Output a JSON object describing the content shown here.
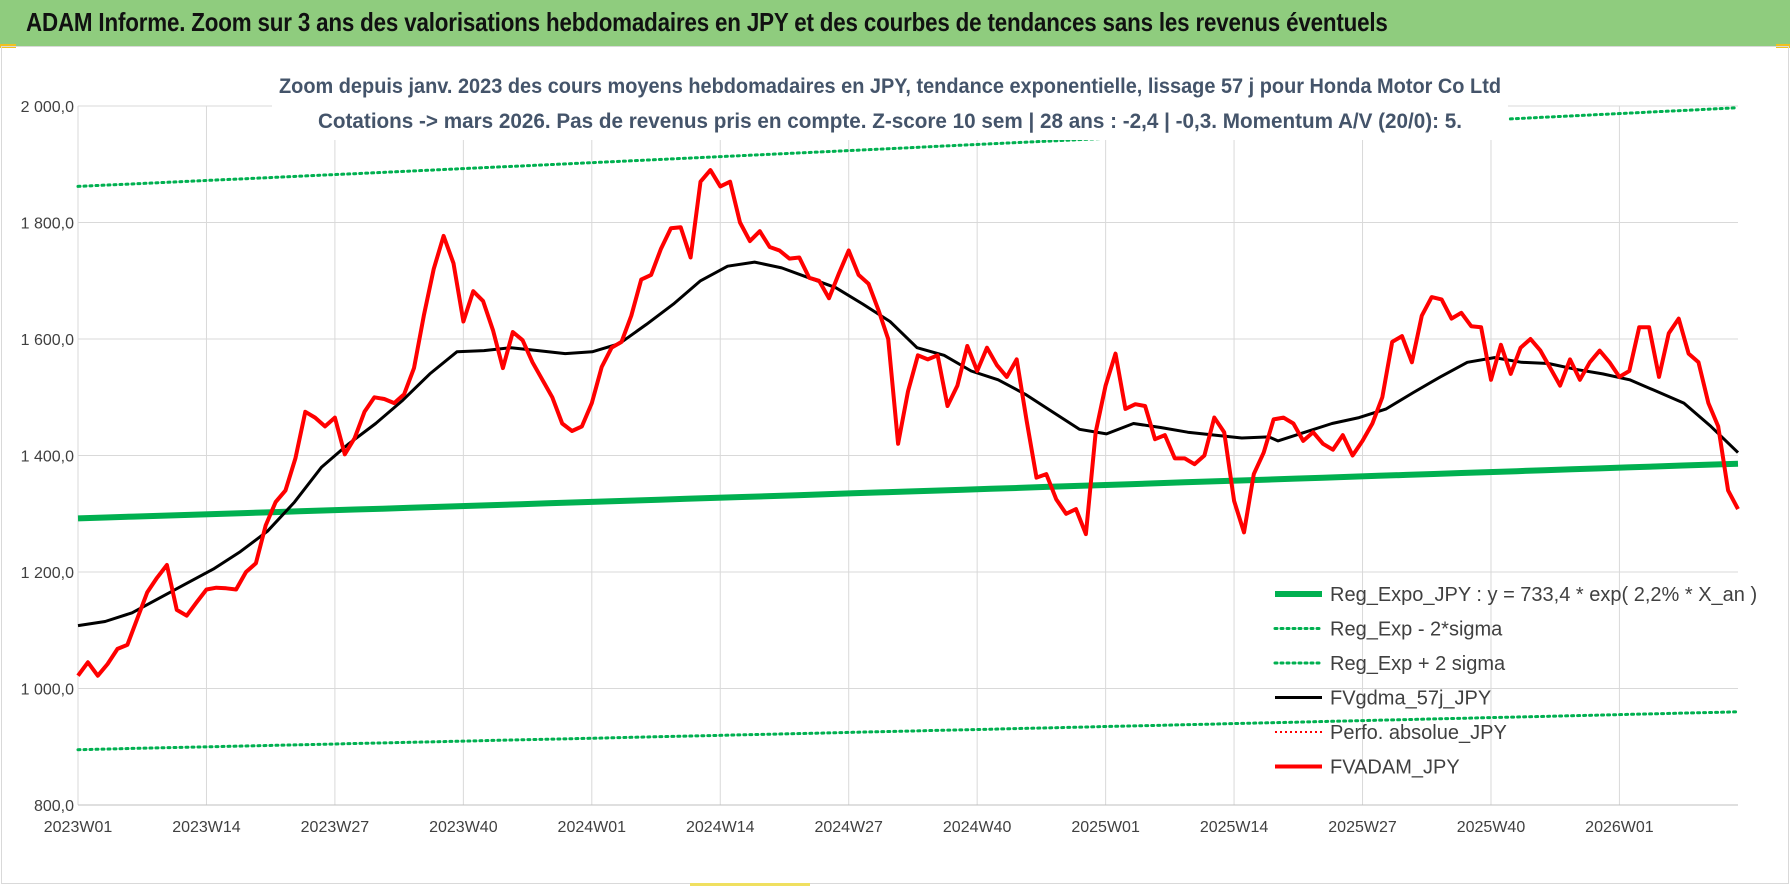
{
  "header": {
    "title": "ADAM Informe. Zoom sur 3 ans des valorisations hebdomadaires en JPY et des courbes de tendances sans les revenus éventuels"
  },
  "chart_data": {
    "type": "line",
    "title_line1": "Zoom depuis janv. 2023 des cours moyens hebdomadaires en JPY, tendance exponentielle, lissage 57 j pour Honda Motor Co Ltd",
    "title_line2": "Cotations -> mars 2026. Pas de revenus pris en compte. Z-score 10 sem | 28 ans : -2,4 | -0,3. Momentum A/V (20/0): 5.",
    "ylim": [
      800,
      2000
    ],
    "yticks": [
      "800,0",
      "1 000,0",
      "1 200,0",
      "1 400,0",
      "1 600,0",
      "1 800,0",
      "2 000,0"
    ],
    "yticks_values": [
      800,
      1000,
      1200,
      1400,
      1600,
      1800,
      2000
    ],
    "x_tick_labels": [
      "2023W01",
      "2023W14",
      "2023W27",
      "2023W40",
      "2024W01",
      "2024W14",
      "2024W27",
      "2024W40",
      "2025W01",
      "2025W14",
      "2025W27",
      "2025W40",
      "2026W01"
    ],
    "x_tick_weeks": [
      0,
      13,
      26,
      39,
      52,
      65,
      78,
      91,
      104,
      117,
      130,
      143,
      156
    ],
    "x_range_weeks": [
      0,
      168
    ],
    "grid": true,
    "legend_position": "bottom-right",
    "colors": {
      "reg_expo": "#00b050",
      "sigma": "#00b050",
      "gdma": "#000000",
      "perf": "#ff0000",
      "fvadam": "#ff0000"
    },
    "legend": [
      {
        "key": "reg_expo",
        "label": "Reg_Expo_JPY : y = 733,4 * exp( 2,2% *  X_an )",
        "style": "thick"
      },
      {
        "key": "sigma_low",
        "label": "Reg_Exp - 2*sigma",
        "style": "dotted-green"
      },
      {
        "key": "sigma_high",
        "label": "Reg_Exp + 2 sigma",
        "style": "dotted-green"
      },
      {
        "key": "gdma",
        "label": "FVgdma_57j_JPY",
        "style": "black"
      },
      {
        "key": "perf",
        "label": "Perfo. absolue_JPY",
        "style": "dotted-red"
      },
      {
        "key": "fvadam",
        "label": "FVADAM_JPY",
        "style": "red"
      }
    ],
    "series": {
      "reg_expo": {
        "start": 1292,
        "end": 1386
      },
      "sigma_low": {
        "start": 895,
        "end": 960
      },
      "sigma_high": {
        "start": 1862,
        "end": 1997
      },
      "gdma": [
        [
          0,
          1108
        ],
        [
          3,
          1115
        ],
        [
          6,
          1130
        ],
        [
          9,
          1155
        ],
        [
          12,
          1180
        ],
        [
          15,
          1205
        ],
        [
          18,
          1235
        ],
        [
          21,
          1270
        ],
        [
          24,
          1320
        ],
        [
          27,
          1380
        ],
        [
          30,
          1420
        ],
        [
          33,
          1455
        ],
        [
          36,
          1495
        ],
        [
          39,
          1540
        ],
        [
          42,
          1578
        ],
        [
          45,
          1580
        ],
        [
          48,
          1585
        ],
        [
          51,
          1580
        ],
        [
          54,
          1575
        ],
        [
          57,
          1578
        ],
        [
          60,
          1592
        ],
        [
          63,
          1625
        ],
        [
          66,
          1660
        ],
        [
          69,
          1700
        ],
        [
          72,
          1725
        ],
        [
          75,
          1732
        ],
        [
          78,
          1722
        ],
        [
          81,
          1705
        ],
        [
          84,
          1688
        ],
        [
          87,
          1660
        ],
        [
          90,
          1630
        ],
        [
          93,
          1585
        ],
        [
          96,
          1572
        ],
        [
          99,
          1545
        ],
        [
          102,
          1530
        ],
        [
          105,
          1505
        ],
        [
          108,
          1475
        ],
        [
          111,
          1445
        ],
        [
          114,
          1437
        ],
        [
          117,
          1455
        ],
        [
          120,
          1448
        ],
        [
          123,
          1440
        ],
        [
          126,
          1435
        ],
        [
          129,
          1430
        ],
        [
          132,
          1432
        ],
        [
          133,
          1425
        ],
        [
          136,
          1440
        ],
        [
          139,
          1455
        ],
        [
          142,
          1465
        ],
        [
          145,
          1480
        ],
        [
          148,
          1508
        ],
        [
          151,
          1535
        ],
        [
          154,
          1560
        ],
        [
          157,
          1568
        ],
        [
          160,
          1560
        ],
        [
          163,
          1558
        ],
        [
          166,
          1548
        ],
        [
          169,
          1540
        ],
        [
          172,
          1530
        ],
        [
          175,
          1510
        ],
        [
          178,
          1490
        ],
        [
          181,
          1450
        ],
        [
          184,
          1405
        ]
      ],
      "fvadam": [
        [
          0,
          1022
        ],
        [
          1,
          1045
        ],
        [
          2,
          1022
        ],
        [
          3,
          1042
        ],
        [
          4,
          1068
        ],
        [
          5,
          1075
        ],
        [
          6,
          1120
        ],
        [
          7,
          1165
        ],
        [
          8,
          1190
        ],
        [
          9,
          1212
        ],
        [
          10,
          1135
        ],
        [
          11,
          1125
        ],
        [
          12,
          1148
        ],
        [
          13,
          1170
        ],
        [
          14,
          1173
        ],
        [
          15,
          1172
        ],
        [
          16,
          1170
        ],
        [
          17,
          1200
        ],
        [
          18,
          1215
        ],
        [
          19,
          1280
        ],
        [
          20,
          1320
        ],
        [
          21,
          1340
        ],
        [
          22,
          1395
        ],
        [
          23,
          1475
        ],
        [
          24,
          1465
        ],
        [
          25,
          1450
        ],
        [
          26,
          1465
        ],
        [
          27,
          1402
        ],
        [
          28,
          1430
        ],
        [
          29,
          1475
        ],
        [
          30,
          1500
        ],
        [
          31,
          1497
        ],
        [
          32,
          1490
        ],
        [
          33,
          1505
        ],
        [
          34,
          1550
        ],
        [
          35,
          1640
        ],
        [
          36,
          1720
        ],
        [
          37,
          1777
        ],
        [
          38,
          1730
        ],
        [
          39,
          1630
        ],
        [
          40,
          1682
        ],
        [
          41,
          1665
        ],
        [
          42,
          1615
        ],
        [
          43,
          1550
        ],
        [
          44,
          1612
        ],
        [
          45,
          1598
        ],
        [
          46,
          1560
        ],
        [
          47,
          1530
        ],
        [
          48,
          1500
        ],
        [
          49,
          1455
        ],
        [
          50,
          1442
        ],
        [
          51,
          1450
        ],
        [
          52,
          1490
        ],
        [
          53,
          1552
        ],
        [
          54,
          1585
        ],
        [
          55,
          1595
        ],
        [
          56,
          1640
        ],
        [
          57,
          1702
        ],
        [
          58,
          1710
        ],
        [
          59,
          1755
        ],
        [
          60,
          1790
        ],
        [
          61,
          1792
        ],
        [
          62,
          1740
        ],
        [
          63,
          1870
        ],
        [
          64,
          1890
        ],
        [
          65,
          1862
        ],
        [
          66,
          1870
        ],
        [
          67,
          1800
        ],
        [
          68,
          1768
        ],
        [
          69,
          1785
        ],
        [
          70,
          1758
        ],
        [
          71,
          1752
        ],
        [
          72,
          1738
        ],
        [
          73,
          1740
        ],
        [
          74,
          1705
        ],
        [
          75,
          1700
        ],
        [
          76,
          1670
        ],
        [
          77,
          1712
        ],
        [
          78,
          1752
        ],
        [
          79,
          1710
        ],
        [
          80,
          1695
        ],
        [
          81,
          1650
        ],
        [
          82,
          1600
        ],
        [
          83,
          1420
        ],
        [
          84,
          1510
        ],
        [
          85,
          1572
        ],
        [
          86,
          1565
        ],
        [
          87,
          1572
        ],
        [
          88,
          1485
        ],
        [
          89,
          1520
        ],
        [
          90,
          1588
        ],
        [
          91,
          1545
        ],
        [
          92,
          1585
        ],
        [
          93,
          1555
        ],
        [
          94,
          1535
        ],
        [
          95,
          1565
        ],
        [
          96,
          1460
        ],
        [
          97,
          1362
        ],
        [
          98,
          1368
        ],
        [
          99,
          1325
        ],
        [
          100,
          1300
        ],
        [
          101,
          1308
        ],
        [
          102,
          1265
        ],
        [
          103,
          1440
        ],
        [
          104,
          1520
        ],
        [
          105,
          1575
        ],
        [
          106,
          1480
        ],
        [
          107,
          1488
        ],
        [
          108,
          1485
        ],
        [
          109,
          1428
        ],
        [
          110,
          1435
        ],
        [
          111,
          1395
        ],
        [
          112,
          1395
        ],
        [
          113,
          1385
        ],
        [
          114,
          1400
        ],
        [
          115,
          1465
        ],
        [
          116,
          1440
        ],
        [
          117,
          1322
        ],
        [
          118,
          1268
        ],
        [
          119,
          1368
        ],
        [
          120,
          1405
        ],
        [
          121,
          1462
        ],
        [
          122,
          1465
        ],
        [
          123,
          1455
        ],
        [
          124,
          1425
        ],
        [
          125,
          1440
        ],
        [
          126,
          1420
        ],
        [
          127,
          1410
        ],
        [
          128,
          1435
        ],
        [
          129,
          1400
        ],
        [
          130,
          1425
        ],
        [
          131,
          1455
        ],
        [
          132,
          1500
        ],
        [
          133,
          1595
        ],
        [
          134,
          1605
        ],
        [
          135,
          1560
        ],
        [
          136,
          1640
        ],
        [
          137,
          1672
        ],
        [
          138,
          1668
        ],
        [
          139,
          1635
        ],
        [
          140,
          1645
        ],
        [
          141,
          1622
        ],
        [
          142,
          1620
        ],
        [
          143,
          1530
        ],
        [
          144,
          1590
        ],
        [
          145,
          1540
        ],
        [
          146,
          1585
        ],
        [
          147,
          1600
        ],
        [
          148,
          1580
        ],
        [
          149,
          1550
        ],
        [
          150,
          1520
        ],
        [
          151,
          1565
        ],
        [
          152,
          1530
        ],
        [
          153,
          1560
        ],
        [
          154,
          1580
        ],
        [
          155,
          1560
        ],
        [
          156,
          1535
        ],
        [
          157,
          1545
        ],
        [
          158,
          1620
        ],
        [
          159,
          1620
        ],
        [
          160,
          1535
        ],
        [
          161,
          1610
        ],
        [
          162,
          1635
        ],
        [
          163,
          1575
        ],
        [
          164,
          1560
        ],
        [
          165,
          1490
        ],
        [
          166,
          1450
        ],
        [
          167,
          1340
        ],
        [
          168,
          1308
        ]
      ]
    }
  }
}
